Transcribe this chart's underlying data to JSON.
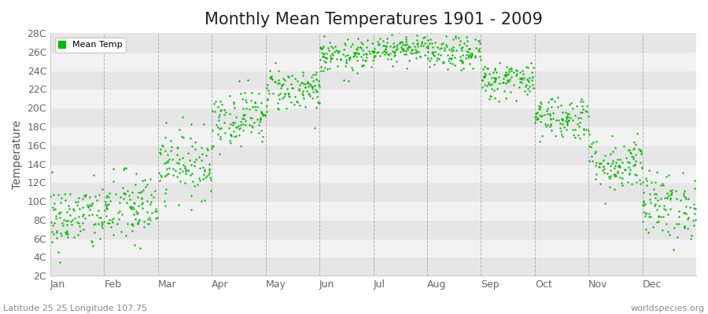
{
  "title": "Monthly Mean Temperatures 1901 - 2009",
  "ylabel": "Temperature",
  "ylim": [
    2,
    28
  ],
  "ytick_labels": [
    "2C",
    "4C",
    "6C",
    "8C",
    "10C",
    "12C",
    "14C",
    "16C",
    "18C",
    "20C",
    "22C",
    "24C",
    "26C",
    "28C"
  ],
  "ytick_values": [
    2,
    4,
    6,
    8,
    10,
    12,
    14,
    16,
    18,
    20,
    22,
    24,
    26,
    28
  ],
  "months": [
    "Jan",
    "Feb",
    "Mar",
    "Apr",
    "May",
    "Jun",
    "Jul",
    "Aug",
    "Sep",
    "Oct",
    "Nov",
    "Dec"
  ],
  "month_means": [
    8.2,
    9.2,
    14.0,
    19.0,
    22.0,
    25.5,
    26.5,
    25.8,
    23.0,
    19.0,
    14.0,
    9.5
  ],
  "month_stds": [
    1.8,
    2.0,
    1.8,
    1.5,
    1.2,
    0.9,
    0.8,
    0.9,
    1.0,
    1.2,
    1.5,
    1.8
  ],
  "n_years": 109,
  "dot_color": "#00bb00",
  "bg_color": "#ffffff",
  "band_color_light": "#f2f2f2",
  "band_color_dark": "#e6e6e6",
  "grid_color": "#999999",
  "title_fontsize": 15,
  "legend_label": "Mean Temp",
  "footer_left": "Latitude 25.25 Longitude 107.75",
  "footer_right": "worldspecies.org",
  "seed": 42
}
